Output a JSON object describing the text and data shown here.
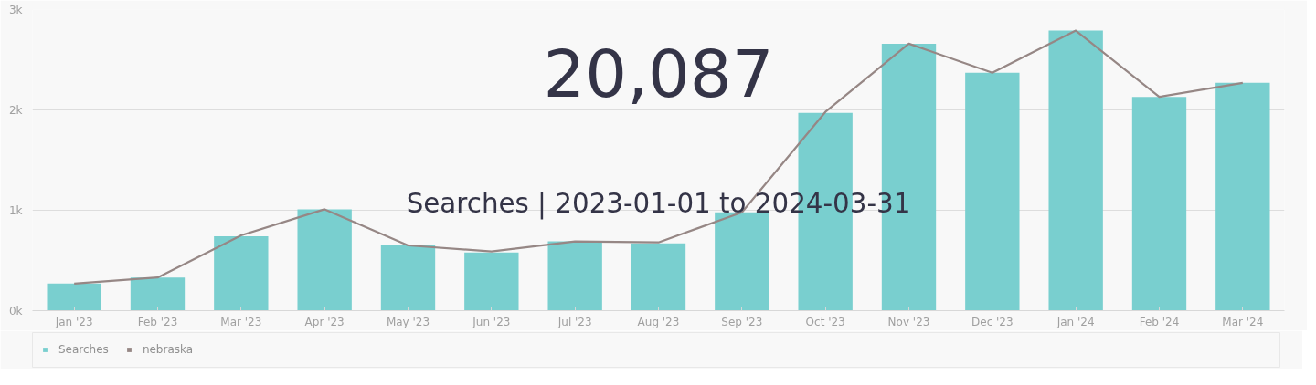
{
  "chart_data": {
    "type": "bar",
    "title": "20,087",
    "subtitle": "Searches | 2023-01-01 to 2024-03-31",
    "categories": [
      "Jan '23",
      "Feb '23",
      "Mar '23",
      "Apr '23",
      "May '23",
      "Jun '23",
      "Jul '23",
      "Aug '23",
      "Sep '23",
      "Oct '23",
      "Nov '23",
      "Dec '23",
      "Jan '24",
      "Feb '24",
      "Mar '24"
    ],
    "series": [
      {
        "name": "Searches",
        "color": "#79cfcf",
        "values": [
          270,
          330,
          740,
          1010,
          650,
          580,
          690,
          670,
          980,
          1970,
          2660,
          2370,
          2790,
          2130,
          2270
        ]
      },
      {
        "name": "nebraska",
        "type": "line",
        "color": "#968785",
        "values": [
          270,
          330,
          750,
          1010,
          650,
          590,
          690,
          680,
          980,
          1980,
          2660,
          2370,
          2790,
          2130,
          2270
        ]
      }
    ],
    "ylim": [
      0,
      3000
    ],
    "yticks": [
      {
        "value": 0,
        "label": "0k"
      },
      {
        "value": 1000,
        "label": "1k"
      },
      {
        "value": 2000,
        "label": "2k"
      },
      {
        "value": 3000,
        "label": "3k"
      }
    ],
    "grid": "y",
    "legend": "bottom left",
    "marker": "none",
    "line_style": "solid"
  }
}
